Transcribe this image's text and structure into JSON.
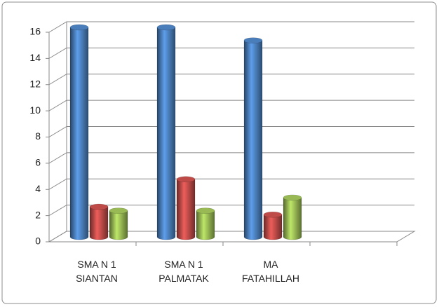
{
  "chart_data": {
    "type": "bar3d",
    "categories": [
      "SMA N 1\nSIANTAN",
      "SMA N 1\nPALMATAK",
      "MA\nFATAHILLAH",
      null
    ],
    "series": [
      {
        "color": "#4a7ebb",
        "values": [
          16,
          16,
          15,
          null
        ]
      },
      {
        "color": "#be4b48",
        "values": [
          2.3,
          4.4,
          1.7,
          null
        ]
      },
      {
        "color": "#98b954",
        "values": [
          2,
          2,
          3,
          null
        ]
      }
    ],
    "ylim": [
      0,
      16
    ],
    "yticks": [
      0,
      2,
      4,
      6,
      8,
      10,
      12,
      14,
      16
    ],
    "grid": true
  }
}
